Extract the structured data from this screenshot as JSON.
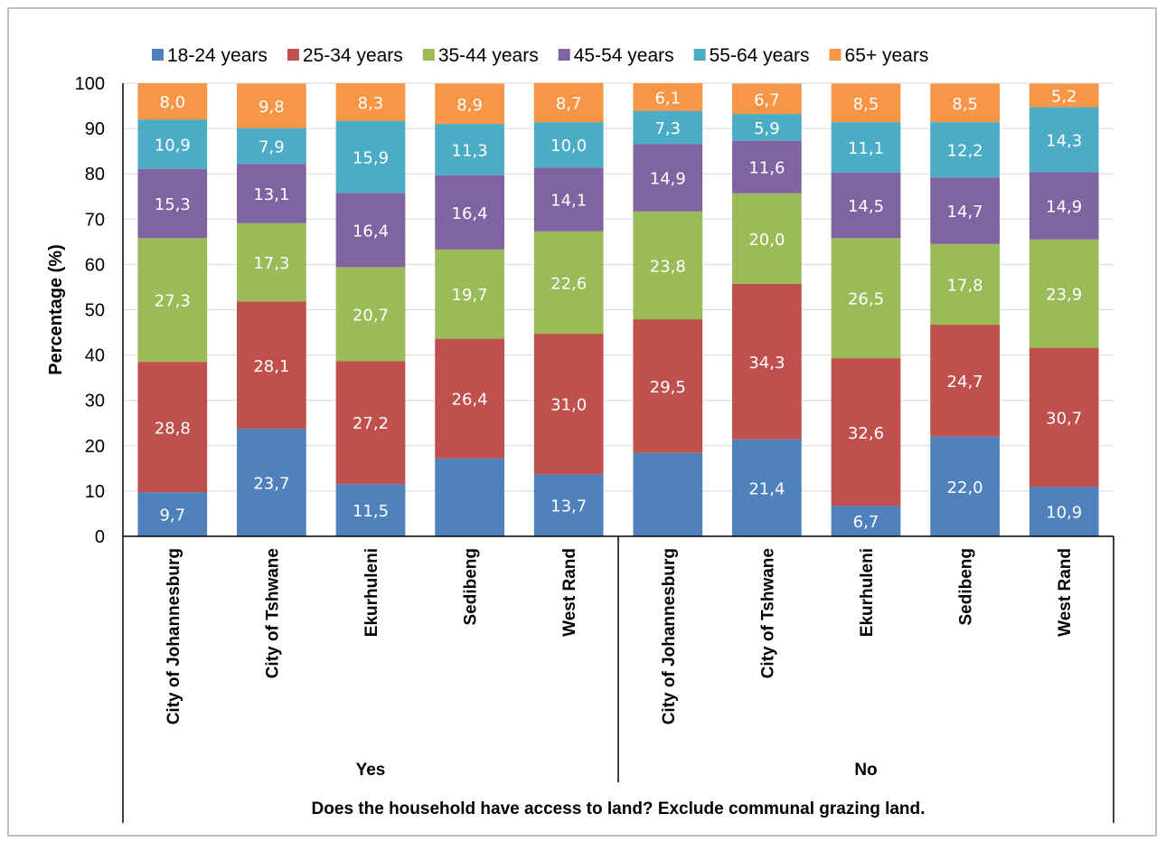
{
  "chart_data": {
    "type": "bar",
    "stacked": true,
    "title": "",
    "ylabel": "Percentage (%)",
    "xlabel": "Does the household have access to land? Exclude communal grazing land.",
    "ylim": [
      0,
      100
    ],
    "yticks": [
      "0",
      "10",
      "20",
      "30",
      "40",
      "50",
      "60",
      "70",
      "80",
      "90",
      "100"
    ],
    "legend_position": "top",
    "groups": [
      {
        "label": "Yes",
        "categories": [
          "City of Johannesburg",
          "City of Tshwane",
          "Ekurhuleni",
          "Sedibeng",
          "West Rand"
        ]
      },
      {
        "label": "No",
        "categories": [
          "City of Johannesburg",
          "City of Tshwane",
          "Ekurhuleni",
          "Sedibeng",
          "West Rand"
        ]
      }
    ],
    "series": [
      {
        "name": "18-24 years",
        "color": "#4f81bd",
        "values": [
          9.7,
          23.7,
          11.5,
          17.2,
          13.7,
          18.4,
          21.4,
          6.7,
          22.0,
          10.9
        ],
        "labels": [
          "9,7",
          "23,7",
          "11,5",
          "",
          "13,7",
          "",
          "21,4",
          "6,7",
          "22,0",
          "10,9"
        ]
      },
      {
        "name": "25-34 years",
        "color": "#c0504d",
        "values": [
          28.8,
          28.1,
          27.2,
          26.4,
          31.0,
          29.5,
          34.3,
          32.6,
          24.7,
          30.7
        ],
        "labels": [
          "28,8",
          "28,1",
          "27,2",
          "26,4",
          "31,0",
          "29,5",
          "34,3",
          "32,6",
          "24,7",
          "30,7"
        ]
      },
      {
        "name": "35-44 years",
        "color": "#9bbb59",
        "values": [
          27.3,
          17.3,
          20.7,
          19.7,
          22.6,
          23.8,
          20.0,
          26.5,
          17.8,
          23.9
        ],
        "labels": [
          "27,3",
          "17,3",
          "20,7",
          "19,7",
          "22,6",
          "23,8",
          "20,0",
          "26,5",
          "17,8",
          "23,9"
        ]
      },
      {
        "name": "45-54 years",
        "color": "#8064a2",
        "values": [
          15.3,
          13.1,
          16.4,
          16.4,
          14.1,
          14.9,
          11.6,
          14.5,
          14.7,
          14.9
        ],
        "labels": [
          "15,3",
          "13,1",
          "16,4",
          "16,4",
          "14,1",
          "14,9",
          "11,6",
          "14,5",
          "14,7",
          "14,9"
        ]
      },
      {
        "name": "55-64 years",
        "color": "#4bacc6",
        "values": [
          10.9,
          7.9,
          15.9,
          11.3,
          10.0,
          7.3,
          5.9,
          11.1,
          12.2,
          14.3
        ],
        "labels": [
          "10,9",
          "7,9",
          "15,9",
          "11,3",
          "10,0",
          "7,3",
          "5,9",
          "11,1",
          "12,2",
          "14,3"
        ]
      },
      {
        "name": "65+ years",
        "color": "#f79646",
        "values": [
          8.0,
          9.8,
          8.3,
          8.9,
          8.7,
          6.1,
          6.7,
          8.5,
          8.5,
          5.2
        ],
        "labels": [
          "8,0",
          "9,8",
          "8,3",
          "8,9",
          "8,7",
          "6,1",
          "6,7",
          "8,5",
          "8,5",
          "5,2"
        ]
      }
    ]
  }
}
